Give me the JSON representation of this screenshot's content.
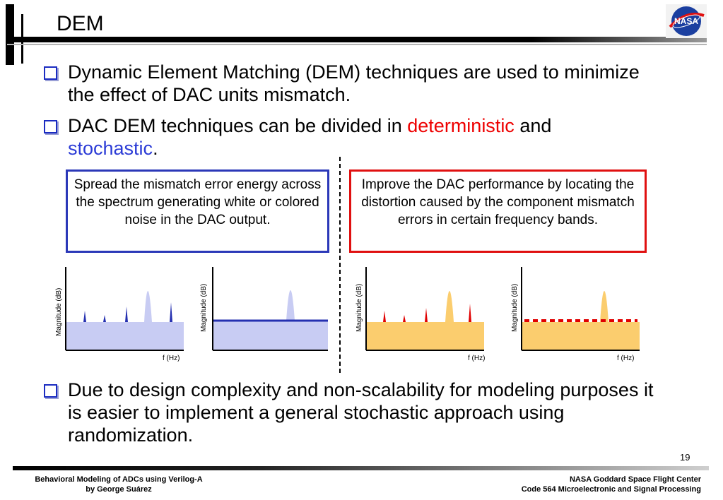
{
  "slide": {
    "title": "DEM",
    "page_number": "19",
    "logo_text": "NASA"
  },
  "bullets": {
    "b1": "Dynamic Element Matching (DEM) techniques are used to minimize the effect of DAC units mismatch.",
    "b2_pre": "DAC DEM techniques can be divided in ",
    "b2_red": "deterministic",
    "b2_mid": " and ",
    "b2_blue": "stochastic",
    "b2_post": ".",
    "b3": "Due to design complexity and non-scalability for modeling purposes it is easier to implement a general stochastic approach using randomization."
  },
  "boxes": {
    "left": "Spread the mismatch error energy across the spectrum generating white or colored noise in the DAC output.",
    "right": "Improve the DAC performance by locating the distortion caused by the component mismatch errors in certain frequency bands."
  },
  "plots": {
    "ylabel": "Magnitude (dB)",
    "xlabel": "f (Hz)",
    "colors": {
      "blue_fill": "#c8ccf3",
      "blue_line": "#2530b0",
      "yellow_fill": "#fbcd6e",
      "red_line": "#e00000"
    }
  },
  "footer": {
    "left_line1": "Behavioral Modeling of ADCs using Verilog-A",
    "left_line2": "by George Suárez",
    "right_line1": "NASA Goddard Space Flight Center",
    "right_line2": "Code 564 Microelectronic and Signal Processing"
  }
}
